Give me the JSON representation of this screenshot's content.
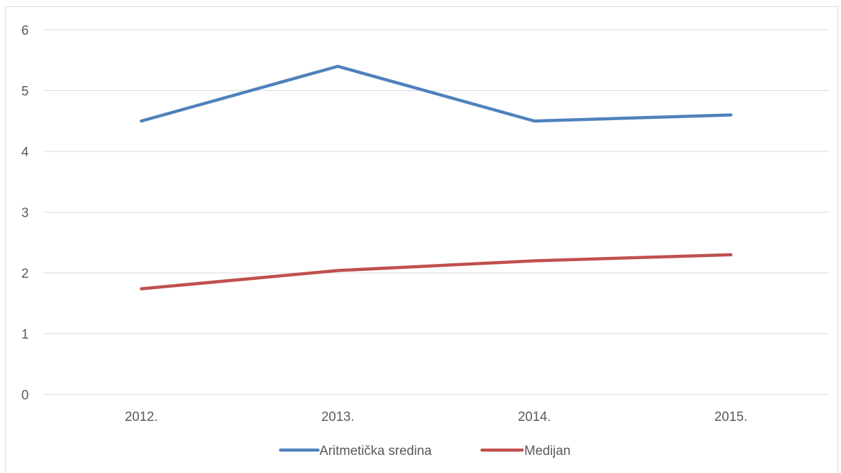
{
  "chart_data": {
    "type": "line",
    "title": "",
    "xlabel": "",
    "ylabel": "",
    "categories": [
      "2012.",
      "2013.",
      "2014.",
      "2015."
    ],
    "ylim": [
      0,
      6
    ],
    "yticks": [
      0,
      1,
      2,
      3,
      4,
      5,
      6
    ],
    "grid": true,
    "legend_position": "bottom",
    "series": [
      {
        "name": "Aritmetička sredina",
        "color": "#4f81bd",
        "values": [
          4.5,
          5.4,
          4.5,
          4.6
        ]
      },
      {
        "name": "Medijan",
        "color": "#c0504d",
        "values": [
          1.74,
          2.04,
          2.2,
          2.3
        ]
      }
    ]
  }
}
